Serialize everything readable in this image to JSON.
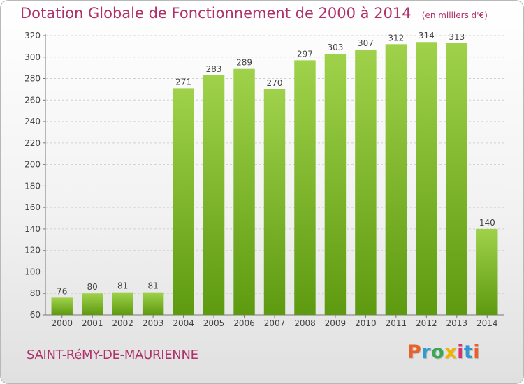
{
  "title": "Dotation Globale de Fonctionnement de 2000 à 2014",
  "subtitle": "(en milliers d'€)",
  "commune": "SAINT-RéMY-DE-MAURIENNE",
  "logo": {
    "letters": [
      "P",
      "r",
      "o",
      "x",
      "i",
      "t",
      "i"
    ],
    "colors": [
      "#e8602c",
      "#2e9ad0",
      "#3aa657",
      "#f0b400",
      "#d6336c",
      "#2e9ad0",
      "#e8602c"
    ]
  },
  "colors": {
    "bar_top": "#9fd24a",
    "bar_bottom": "#5e9a10",
    "title": "#b0306a",
    "grid": "#cfcfcf"
  },
  "chart_data": {
    "type": "bar",
    "categories": [
      "2000",
      "2001",
      "2002",
      "2003",
      "2004",
      "2005",
      "2006",
      "2007",
      "2008",
      "2009",
      "2010",
      "2011",
      "2012",
      "2013",
      "2014"
    ],
    "values": [
      76,
      80,
      81,
      81,
      271,
      283,
      289,
      270,
      297,
      303,
      307,
      312,
      314,
      313,
      140
    ],
    "title": "Dotation Globale de Fonctionnement de 2000 à 2014",
    "subtitle": "(en milliers d'€)",
    "xlabel": "",
    "ylabel": "",
    "ylim": [
      60,
      320
    ],
    "yticks": [
      60,
      80,
      100,
      120,
      140,
      160,
      180,
      200,
      220,
      240,
      260,
      280,
      300,
      320
    ],
    "grid": true,
    "legend": "none"
  }
}
